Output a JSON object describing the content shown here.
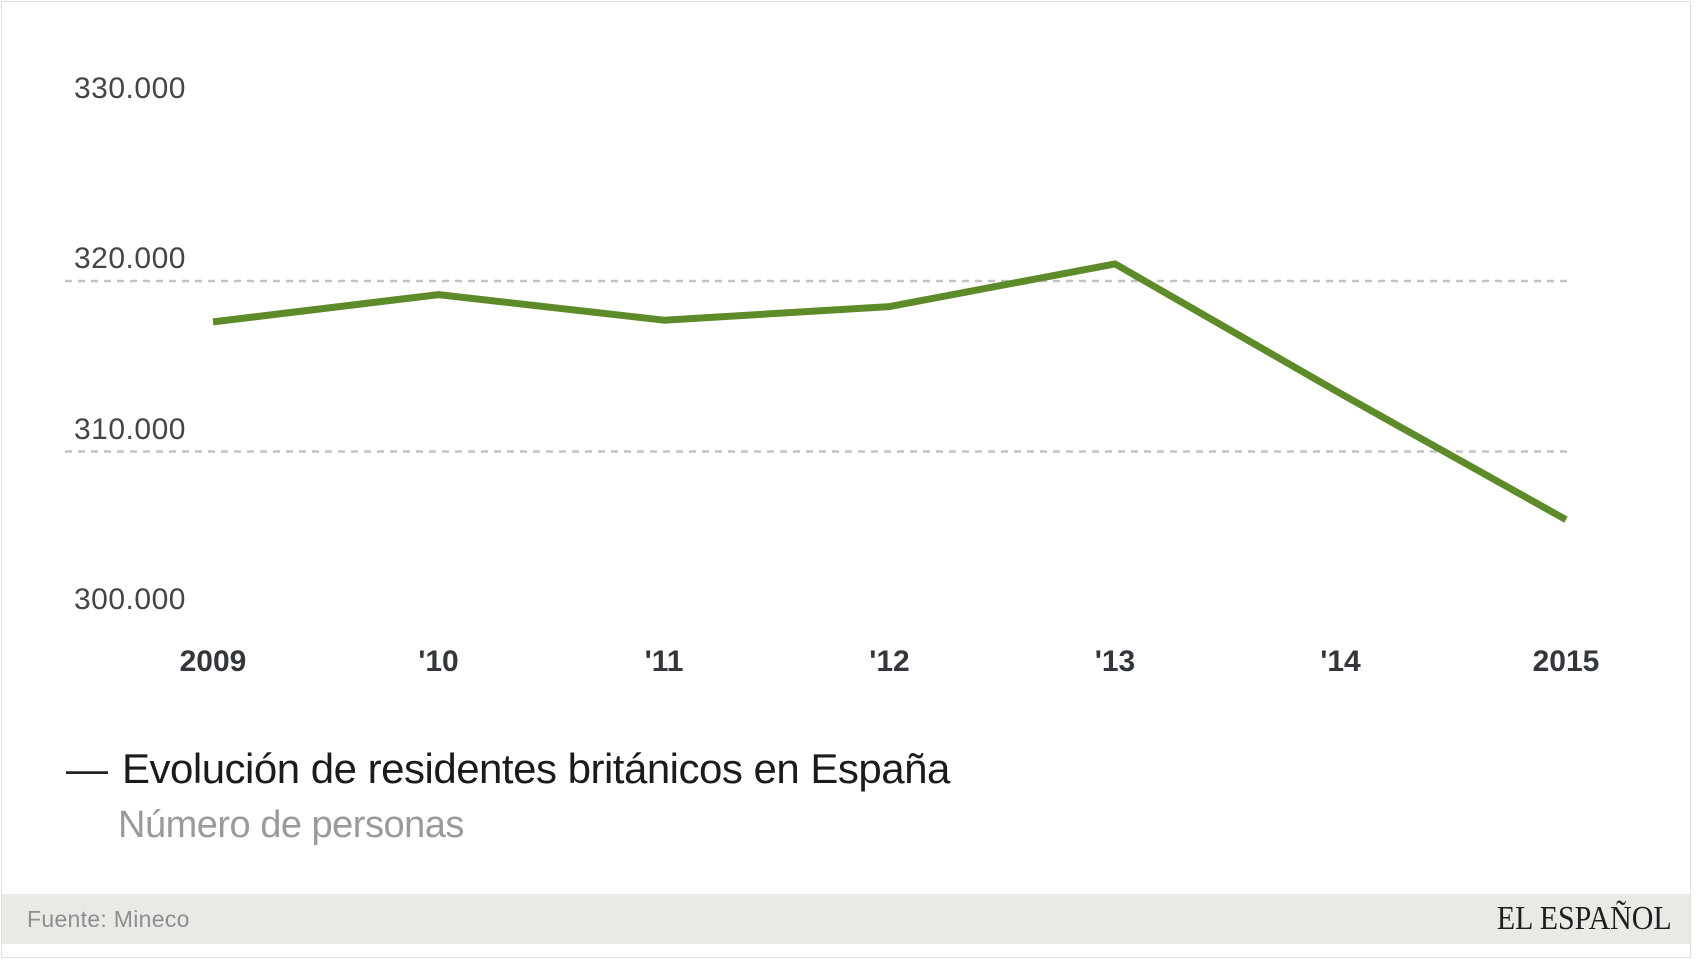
{
  "chart_data": {
    "type": "line",
    "title": "Evolución de residentes británicos en España",
    "subtitle": "Número de personas",
    "x": [
      2009,
      2010,
      2011,
      2012,
      2013,
      2014,
      2015
    ],
    "x_tick_labels": [
      "2009",
      "'10",
      "'11",
      "'12",
      "'13",
      "'14",
      "2015"
    ],
    "series": [
      {
        "name": "Evolución de residentes británicos en España",
        "values": [
          317600,
          319200,
          317700,
          318500,
          321000,
          313400,
          306000
        ]
      }
    ],
    "ylim": [
      300000,
      330000
    ],
    "ylabel": "Número de personas",
    "xlabel": "",
    "y_ticks": [
      {
        "value": 330000,
        "label": "330.000"
      },
      {
        "value": 320000,
        "label": "320.000"
      },
      {
        "value": 310000,
        "label": "310.000"
      },
      {
        "value": 300000,
        "label": "300.000"
      }
    ],
    "gridlines_at": [
      320000,
      310000
    ],
    "grid": "horizontal-dotted",
    "legend_position": "below-chart",
    "line_color": "#5d8b29",
    "gridline_color": "#c3c3c3"
  },
  "legend": {
    "dash": "—"
  },
  "footer": {
    "source": "Fuente: Mineco",
    "brand": "EL ESPAÑOL"
  },
  "colors": {
    "accent_line": "#5d8b29",
    "footer_background": "#e9e9e6",
    "title_text": "#1b1b1b",
    "subtitle_text": "#9a9a9a",
    "axis_text": "#454545"
  }
}
